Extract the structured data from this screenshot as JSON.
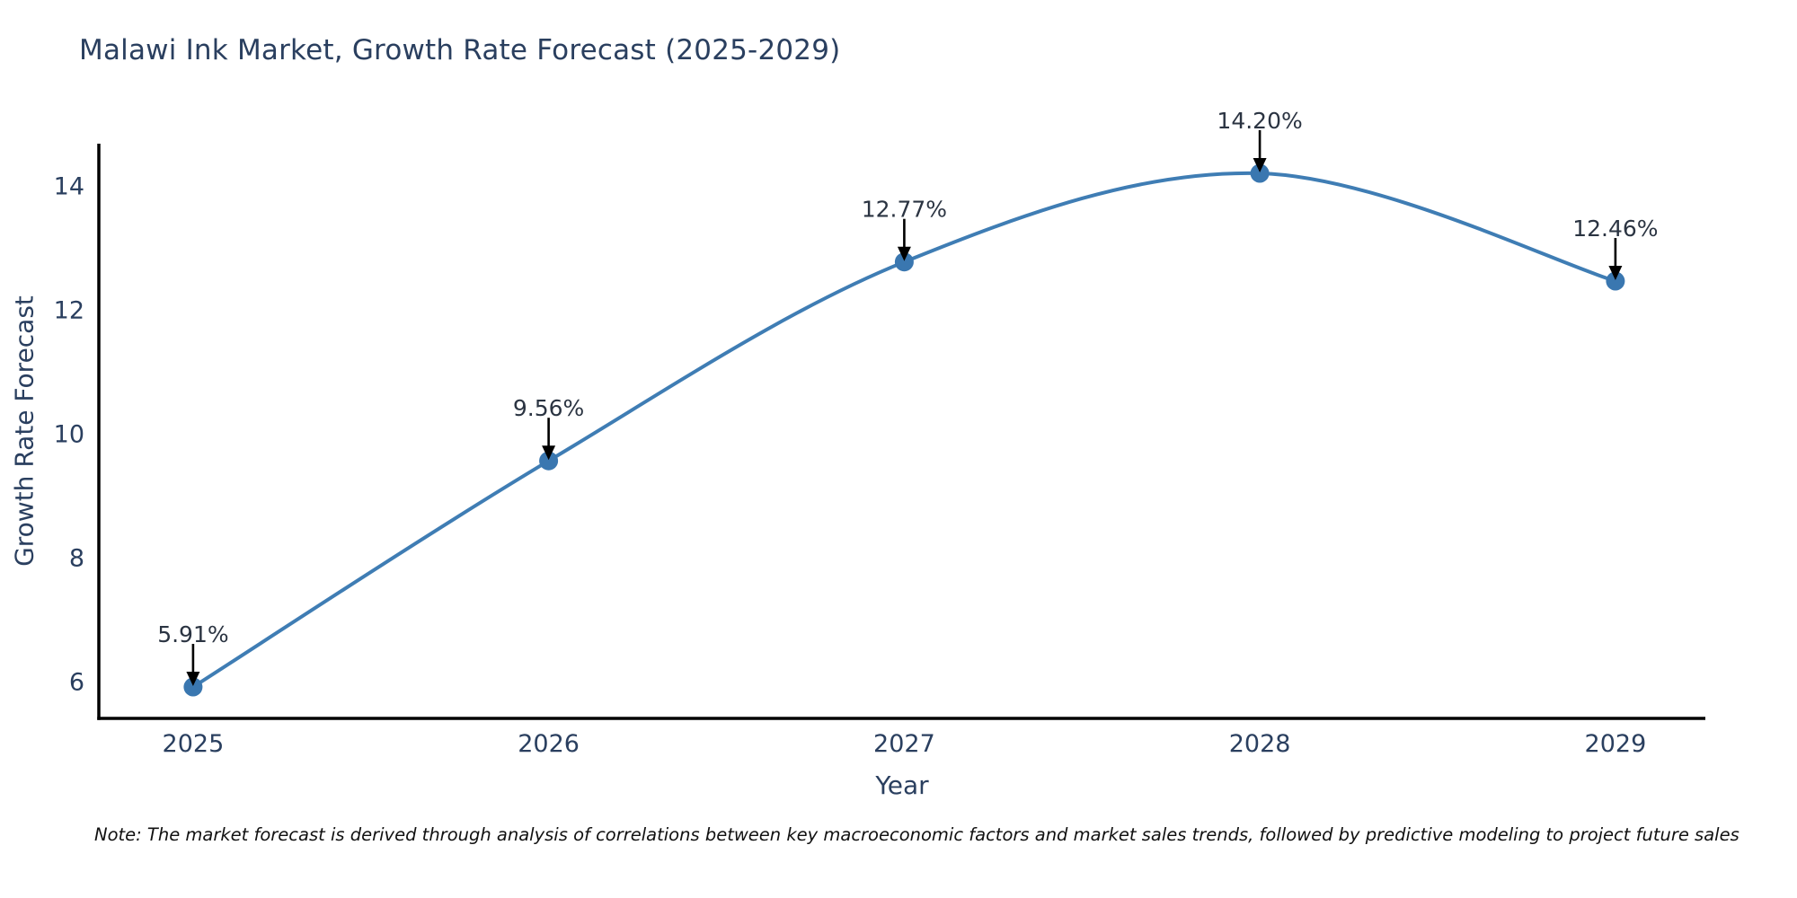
{
  "page": {
    "note": "Note: The market forecast is derived through analysis of correlations between key macroeconomic factors and market sales trends, followed by predictive modeling to project future sales"
  },
  "chart_data": {
    "type": "line",
    "title": "Malawi Ink Market, Growth Rate Forecast (2025-2029)",
    "xlabel": "Year",
    "ylabel": "Growth Rate Forecast",
    "x": [
      2025,
      2026,
      2027,
      2028,
      2029
    ],
    "x_tick_labels": [
      "2025",
      "2026",
      "2027",
      "2028",
      "2029"
    ],
    "series": [
      {
        "name": "Growth Rate Forecast",
        "values": [
          5.91,
          9.56,
          12.77,
          14.2,
          12.46
        ]
      }
    ],
    "point_labels": [
      "5.91%",
      "9.56%",
      "12.77%",
      "14.20%",
      "12.46%"
    ],
    "y_ticks": [
      6,
      8,
      10,
      12,
      14
    ],
    "xlim": [
      2024.735,
      2029.253
    ],
    "ylim": [
      5.403,
      14.678
    ],
    "grid": false,
    "legend": "none",
    "colors": {
      "line": "#3f7db4",
      "marker": "#3a77b0",
      "axis": "#000000",
      "tick_text": "#2a3f5f",
      "annotation_text": "#2b3442",
      "arrow": "#000000"
    }
  }
}
